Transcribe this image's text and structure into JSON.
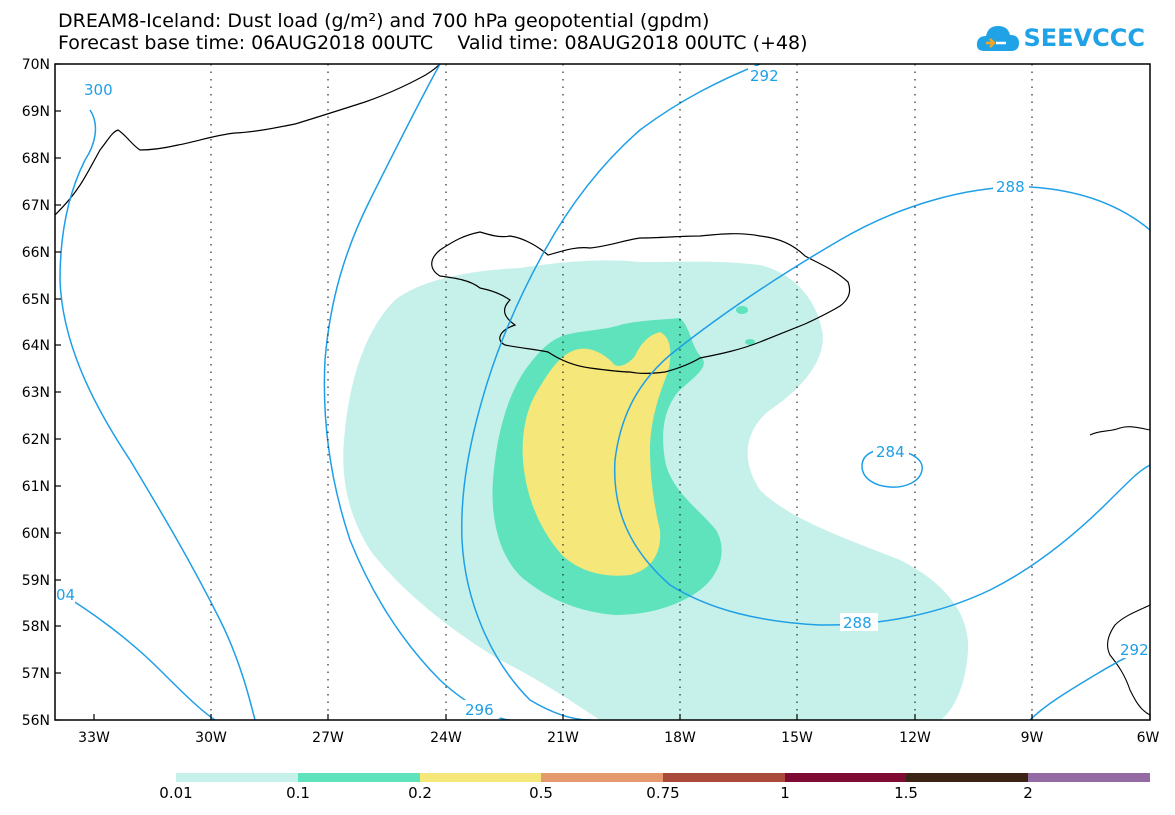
{
  "title": {
    "line1": "DREAM8-Iceland: Dust load (g/m²) and 700 hPa geopotential (gpdm)",
    "line2": "Forecast base time: 06AUG2018 00UTC    Valid time: 08AUG2018 00UTC (+48)"
  },
  "logo": {
    "text": "SEEVCCC",
    "icon": "cloud-logo-icon",
    "color": "#1fa3e6"
  },
  "axes": {
    "lat_labels": [
      "70N",
      "69N",
      "68N",
      "67N",
      "66N",
      "65N",
      "64N",
      "63N",
      "62N",
      "61N",
      "60N",
      "59N",
      "58N",
      "57N",
      "56N"
    ],
    "lon_labels": [
      "33W",
      "30W",
      "27W",
      "24W",
      "21W",
      "18W",
      "15W",
      "12W",
      "9W",
      "6W"
    ]
  },
  "contours": {
    "color": "#1e9fe8",
    "labels": [
      "300",
      "292",
      "288",
      "284",
      "296",
      "288",
      "04",
      "292"
    ]
  },
  "colorbar": {
    "colors": [
      "#c6f1ea",
      "#5ee3bc",
      "#f6e77a",
      "#e49a6c",
      "#a94a3a",
      "#7f0a32",
      "#3b2413",
      "#946aa2"
    ],
    "labels": [
      "0.01",
      "0.1",
      "0.2",
      "0.5",
      "0.75",
      "1",
      "1.5",
      "2"
    ]
  },
  "dust_colors": {
    "low": "#c6f1ea",
    "mid": "#5ee3bc",
    "high": "#f6e77a"
  }
}
